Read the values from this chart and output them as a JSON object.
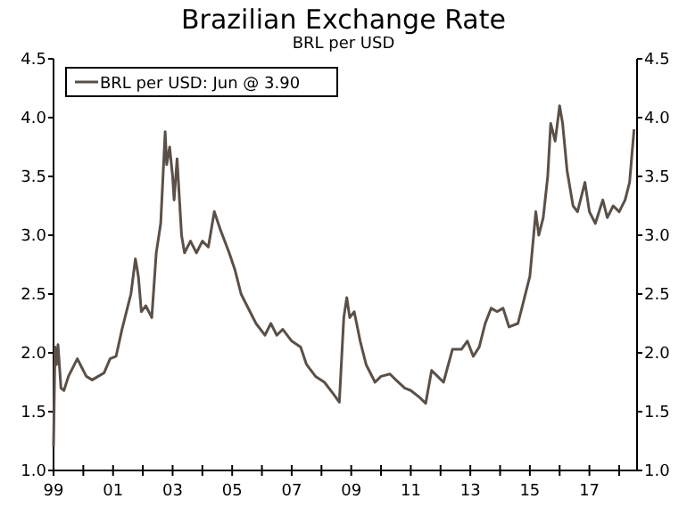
{
  "chart_data": {
    "type": "line",
    "title": "Brazilian Exchange Rate",
    "subtitle": "BRL per USD",
    "x": [
      1999.0,
      1999.05,
      1999.1,
      1999.15,
      1999.25,
      1999.35,
      1999.5,
      1999.8,
      1999.9,
      2000.1,
      2000.3,
      2000.5,
      2000.7,
      2000.9,
      2001.1,
      2001.3,
      2001.5,
      2001.6,
      2001.75,
      2001.85,
      2001.95,
      2002.1,
      2002.3,
      2002.45,
      2002.6,
      2002.75,
      2002.8,
      2002.9,
      2003.0,
      2003.05,
      2003.15,
      2003.3,
      2003.4,
      2003.6,
      2003.8,
      2004.0,
      2004.2,
      2004.4,
      2004.6,
      2004.9,
      2005.1,
      2005.3,
      2005.5,
      2005.8,
      2006.1,
      2006.3,
      2006.5,
      2006.7,
      2007.0,
      2007.3,
      2007.5,
      2007.8,
      2008.1,
      2008.4,
      2008.6,
      2008.75,
      2008.85,
      2008.95,
      2009.1,
      2009.3,
      2009.5,
      2009.8,
      2010.0,
      2010.3,
      2010.5,
      2010.8,
      2011.0,
      2011.3,
      2011.5,
      2011.7,
      2011.9,
      2012.1,
      2012.4,
      2012.7,
      2012.9,
      2013.1,
      2013.3,
      2013.5,
      2013.7,
      2013.9,
      2014.1,
      2014.3,
      2014.6,
      2014.8,
      2015.0,
      2015.2,
      2015.3,
      2015.45,
      2015.6,
      2015.7,
      2015.85,
      2016.0,
      2016.1,
      2016.25,
      2016.45,
      2016.6,
      2016.85,
      2017.0,
      2017.2,
      2017.45,
      2017.6,
      2017.8,
      2018.0,
      2018.2,
      2018.35,
      2018.5
    ],
    "series": [
      {
        "name": "BRL per USD: Jun @ 3.90",
        "color": "#5a5048",
        "values": [
          1.2,
          2.05,
          1.9,
          2.07,
          1.7,
          1.68,
          1.8,
          1.95,
          1.9,
          1.8,
          1.77,
          1.8,
          1.83,
          1.95,
          1.97,
          2.2,
          2.4,
          2.5,
          2.8,
          2.65,
          2.35,
          2.4,
          2.3,
          2.85,
          3.1,
          3.88,
          3.6,
          3.75,
          3.5,
          3.3,
          3.65,
          3.0,
          2.85,
          2.95,
          2.85,
          2.95,
          2.9,
          3.2,
          3.05,
          2.85,
          2.7,
          2.5,
          2.4,
          2.25,
          2.15,
          2.25,
          2.15,
          2.2,
          2.1,
          2.05,
          1.9,
          1.8,
          1.75,
          1.65,
          1.58,
          2.3,
          2.47,
          2.3,
          2.35,
          2.1,
          1.9,
          1.75,
          1.8,
          1.82,
          1.77,
          1.7,
          1.68,
          1.62,
          1.57,
          1.85,
          1.8,
          1.75,
          2.03,
          2.03,
          2.1,
          1.97,
          2.05,
          2.25,
          2.38,
          2.35,
          2.38,
          2.22,
          2.25,
          2.45,
          2.65,
          3.2,
          3.0,
          3.15,
          3.5,
          3.95,
          3.8,
          4.1,
          3.95,
          3.55,
          3.25,
          3.2,
          3.45,
          3.2,
          3.1,
          3.3,
          3.15,
          3.25,
          3.2,
          3.3,
          3.45,
          3.9
        ]
      }
    ],
    "xlim": [
      1999,
      2018.6
    ],
    "xticks": [
      {
        "value": 1999,
        "label": "99"
      },
      {
        "value": 2000,
        "label": null
      },
      {
        "value": 2001,
        "label": "01"
      },
      {
        "value": 2002,
        "label": null
      },
      {
        "value": 2003,
        "label": "03"
      },
      {
        "value": 2004,
        "label": null
      },
      {
        "value": 2005,
        "label": "05"
      },
      {
        "value": 2006,
        "label": null
      },
      {
        "value": 2007,
        "label": "07"
      },
      {
        "value": 2008,
        "label": null
      },
      {
        "value": 2009,
        "label": "09"
      },
      {
        "value": 2010,
        "label": null
      },
      {
        "value": 2011,
        "label": "11"
      },
      {
        "value": 2012,
        "label": null
      },
      {
        "value": 2013,
        "label": "13"
      },
      {
        "value": 2014,
        "label": null
      },
      {
        "value": 2015,
        "label": "15"
      },
      {
        "value": 2016,
        "label": null
      },
      {
        "value": 2017,
        "label": "17"
      },
      {
        "value": 2018,
        "label": null
      }
    ],
    "ylim": [
      1.0,
      4.5
    ],
    "yticks": [
      {
        "value": 1.0,
        "label": "1.0"
      },
      {
        "value": 1.5,
        "label": "1.5"
      },
      {
        "value": 2.0,
        "label": "2.0"
      },
      {
        "value": 2.5,
        "label": "2.5"
      },
      {
        "value": 3.0,
        "label": "3.0"
      },
      {
        "value": 3.5,
        "label": "3.5"
      },
      {
        "value": 4.0,
        "label": "4.0"
      },
      {
        "value": 4.5,
        "label": "4.5"
      }
    ],
    "y2lim": [
      1.0,
      4.5
    ],
    "y2ticks": [
      {
        "value": 1.0,
        "label": "1.0"
      },
      {
        "value": 1.5,
        "label": "1.5"
      },
      {
        "value": 2.0,
        "label": "2.0"
      },
      {
        "value": 2.5,
        "label": "2.5"
      },
      {
        "value": 3.0,
        "label": "3.0"
      },
      {
        "value": 3.5,
        "label": "3.5"
      },
      {
        "value": 4.0,
        "label": "4.0"
      },
      {
        "value": 4.5,
        "label": "4.5"
      }
    ],
    "legend": "top left",
    "grid": false
  }
}
